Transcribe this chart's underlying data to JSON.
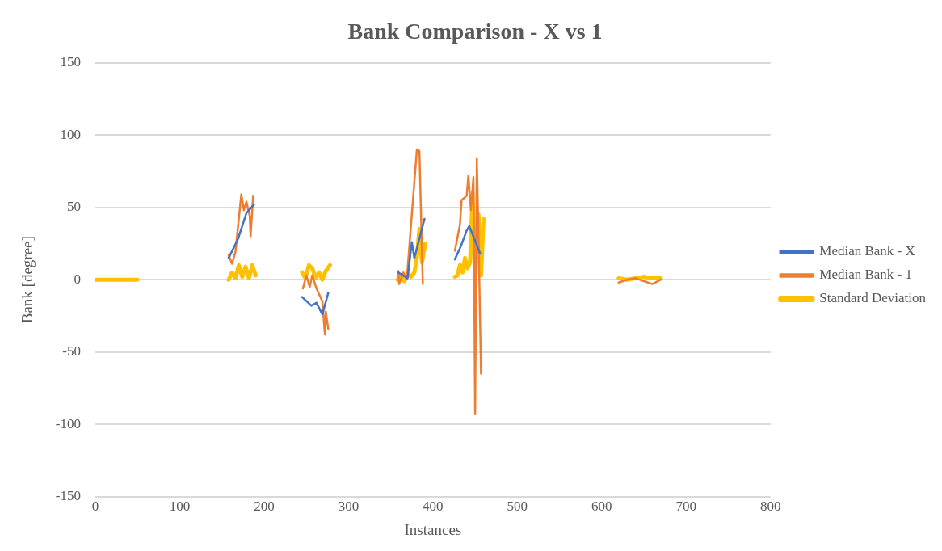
{
  "chart_data": {
    "type": "line",
    "title": "Bank Comparison - X vs 1",
    "xlabel": "Instances",
    "ylabel": "Bank [degree]",
    "xlim": [
      0,
      800
    ],
    "xticks": [
      0,
      100,
      200,
      300,
      400,
      500,
      600,
      700,
      800
    ],
    "ylim": [
      -150,
      150
    ],
    "yticks": [
      -150,
      -100,
      -50,
      0,
      50,
      100,
      150
    ],
    "grid": "y",
    "legend": "right",
    "marker": "none",
    "line_style": "solid",
    "series": [
      {
        "name": "Median Bank - X",
        "color": "#4472c4",
        "x": [
          158,
          169,
          179,
          188,
          200,
          245,
          256,
          262,
          269,
          276,
          300,
          359,
          370,
          375,
          378,
          390,
          400,
          426,
          433,
          440,
          443,
          456
        ],
        "values": [
          15,
          28,
          46,
          52,
          null,
          -12,
          -18,
          -16,
          -24,
          -9,
          null,
          5,
          1,
          26,
          15,
          42,
          null,
          14,
          23,
          34,
          37,
          18
        ]
      },
      {
        "name": "Median Bank - 1",
        "color": "#ed7d31",
        "x": [
          158,
          162,
          166,
          173,
          176,
          179,
          183,
          184,
          187,
          200,
          246,
          250,
          254,
          257,
          262,
          269,
          272,
          273,
          276,
          300,
          359,
          360,
          365,
          369,
          381,
          384,
          388,
          400,
          426,
          432,
          434,
          440,
          442,
          445,
          448,
          450,
          452,
          454,
          457,
          500,
          620,
          630,
          640,
          650,
          660,
          670
        ],
        "values": [
          17,
          11,
          19,
          59,
          48,
          54,
          44,
          30,
          58,
          null,
          -6,
          3,
          -5,
          3,
          -6,
          -15,
          -38,
          -22,
          -34,
          null,
          6,
          -3,
          5,
          0,
          90,
          89,
          -3,
          null,
          20,
          38,
          55,
          58,
          72,
          48,
          71,
          -93,
          84,
          30,
          -65,
          null,
          -2,
          0,
          1,
          -1,
          -3,
          0
        ]
      },
      {
        "name": "Standard Deviation",
        "color": "#ffc000",
        "x": [
          0,
          50,
          100,
          158,
          162,
          166,
          170,
          174,
          178,
          182,
          186,
          190,
          200,
          245,
          249,
          253,
          257,
          261,
          265,
          269,
          273,
          278,
          300,
          358,
          362,
          366,
          370,
          374,
          378,
          381,
          384,
          387,
          391,
          400,
          426,
          429,
          432,
          435,
          438,
          441,
          444,
          447,
          450,
          452,
          454,
          457,
          460,
          500,
          620,
          630,
          640,
          650,
          660,
          670
        ],
        "values": [
          0,
          0,
          null,
          0,
          5,
          1,
          10,
          2,
          9,
          1,
          10,
          3,
          null,
          5,
          1,
          10,
          8,
          1,
          5,
          0,
          6,
          10,
          null,
          0,
          3,
          -1,
          4,
          2,
          5,
          15,
          35,
          12,
          25,
          null,
          2,
          3,
          10,
          5,
          15,
          8,
          12,
          60,
          0,
          20,
          45,
          3,
          42,
          null,
          1,
          0,
          1,
          2,
          1,
          1
        ]
      }
    ]
  }
}
